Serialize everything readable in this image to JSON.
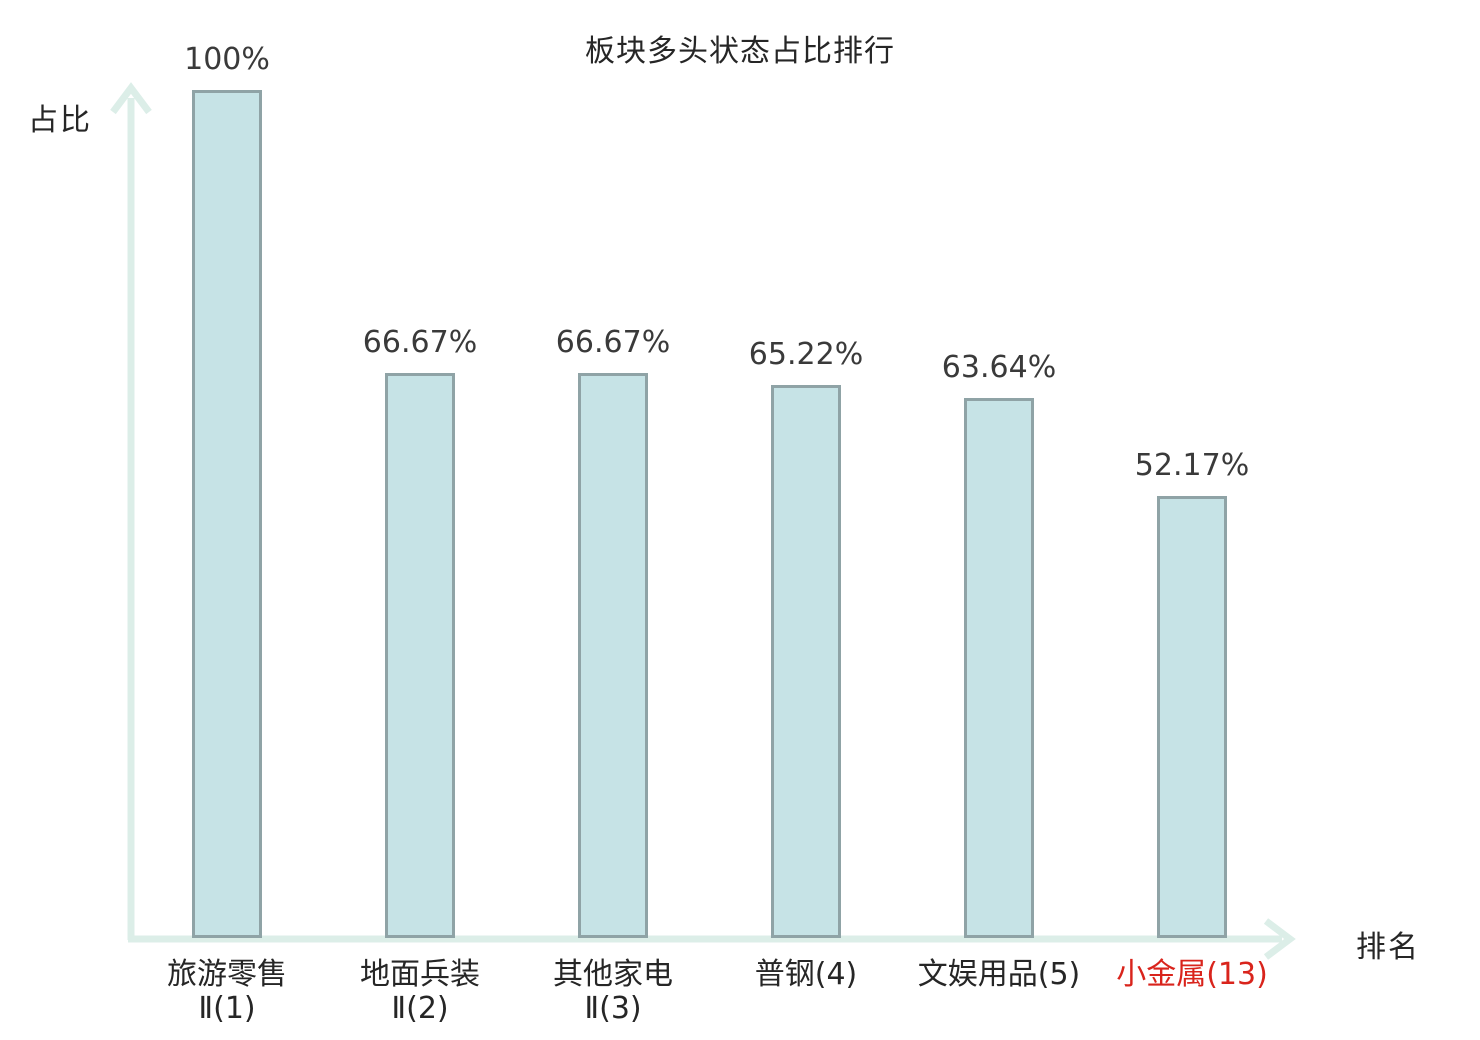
{
  "chart_data": {
    "type": "bar",
    "title": "板块多头状态占比排行",
    "xlabel": "排名",
    "ylabel": "占比",
    "ylim": [
      0,
      100
    ],
    "grid": false,
    "legend": "none",
    "categories": [
      "旅游零售Ⅱ(1)",
      "地面兵装Ⅱ(2)",
      "其他家电Ⅱ(3)",
      "普钢(4)",
      "文娱用品(5)",
      "小金属(13)"
    ],
    "values": [
      100,
      66.67,
      66.67,
      65.22,
      63.64,
      52.17
    ],
    "bars": [
      {
        "label_line1": "旅游零售",
        "label_line2": "Ⅱ(1)",
        "value": 100,
        "value_label": "100%",
        "highlighted": false
      },
      {
        "label_line1": "地面兵装",
        "label_line2": "Ⅱ(2)",
        "value": 66.67,
        "value_label": "66.67%",
        "highlighted": false
      },
      {
        "label_line1": "其他家电",
        "label_line2": "Ⅱ(3)",
        "value": 66.67,
        "value_label": "66.67%",
        "highlighted": false
      },
      {
        "label_line1": "普钢(4)",
        "label_line2": "",
        "value": 65.22,
        "value_label": "65.22%",
        "highlighted": false
      },
      {
        "label_line1": "文娱用品(5)",
        "label_line2": "",
        "value": 63.64,
        "value_label": "63.64%",
        "highlighted": false
      },
      {
        "label_line1": "小金属(13)",
        "label_line2": "",
        "value": 52.17,
        "value_label": "52.17%",
        "highlighted": true
      }
    ],
    "colors": {
      "bar_fill": "#c6e3e6",
      "bar_border": "#8fa3a6",
      "axis": "#dceee8",
      "text": "#262626",
      "value_text": "#3a3a3a",
      "highlight_text": "#d9241c",
      "background": "#ffffff"
    }
  }
}
